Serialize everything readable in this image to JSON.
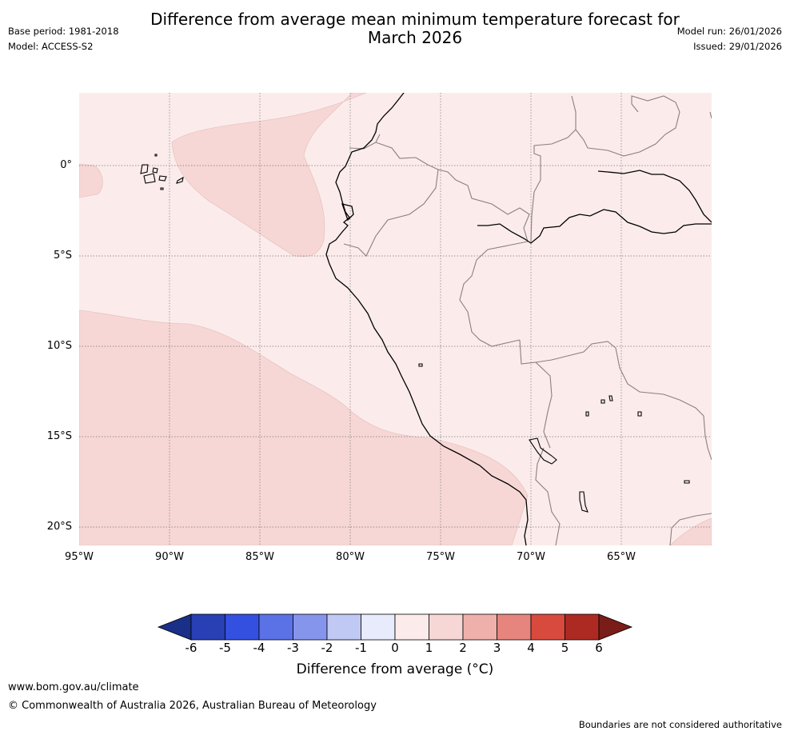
{
  "header": {
    "title_line1": "Difference from average mean minimum temperature forecast for",
    "title_line2": "March 2026",
    "base_period": "Base period: 1981-2018",
    "model": "Model: ACCESS-S2",
    "model_run": "Model run: 26/01/2026",
    "issued": "Issued: 29/01/2026"
  },
  "map": {
    "lat_labels": [
      "0°",
      "5°S",
      "10°S",
      "15°S",
      "20°S"
    ],
    "lon_labels": [
      "95°W",
      "90°W",
      "85°W",
      "80°W",
      "75°W",
      "70°W",
      "65°W"
    ],
    "colors": {
      "anomaly_0_1": "#fbeceb",
      "anomaly_1_2": "#f6d7d5",
      "coastline": "#000000",
      "borders": "#8c7f7f",
      "gridline": "#777777"
    }
  },
  "colorbar": {
    "title": "Difference from average (°C)",
    "ticks": [
      "-6",
      "-5",
      "-4",
      "-3",
      "-2",
      "-1",
      "0",
      "1",
      "2",
      "3",
      "4",
      "5",
      "6"
    ],
    "colors": [
      "#1a2f88",
      "#2840b4",
      "#3350e0",
      "#5b72e6",
      "#8695ec",
      "#c0c8f4",
      "#e8ebfb",
      "#fbeceb",
      "#f6d7d5",
      "#efb0ac",
      "#e6857e",
      "#d94a3e",
      "#ad2a23",
      "#7a1c17"
    ]
  },
  "footer": {
    "url": "www.bom.gov.au/climate",
    "copyright": "© Commonwealth of Australia 2026, Australian Bureau of Meteorology",
    "note": "Boundaries are not considered authoritative"
  }
}
